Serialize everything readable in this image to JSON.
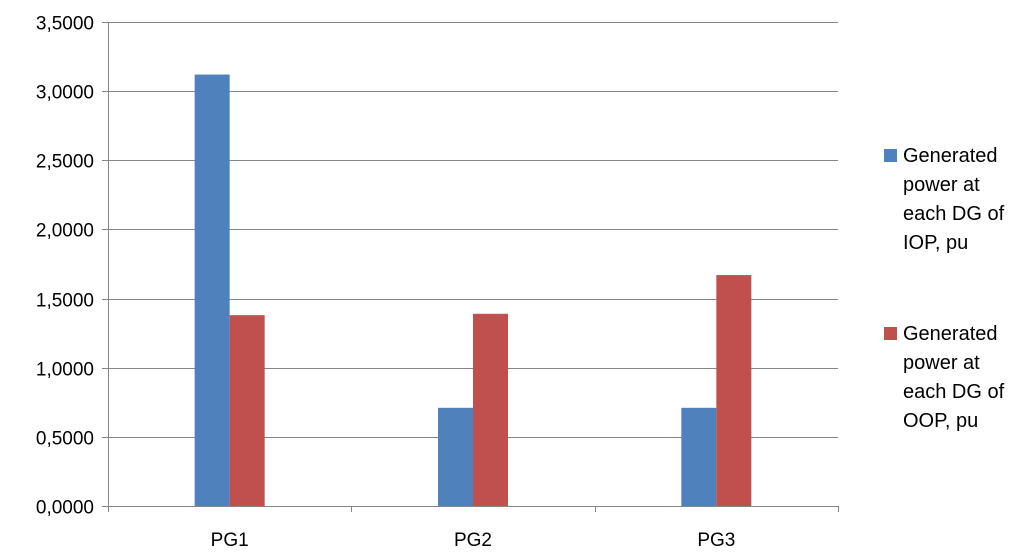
{
  "chart_data": {
    "type": "bar",
    "categories": [
      "PG1",
      "PG2",
      "PG3"
    ],
    "series": [
      {
        "name": "Generated power at each DG of IOP, pu",
        "legend_lines": [
          "Generated",
          "power at",
          "each DG of",
          "IOP, pu"
        ],
        "color": "#4F81BD",
        "values": [
          3.12,
          0.71,
          0.71
        ]
      },
      {
        "name": "Generated power at each DG of OOP, pu",
        "legend_lines": [
          "Generated",
          "power at",
          "each DG of",
          "OOP, pu"
        ],
        "color": "#C0504D",
        "values": [
          1.38,
          1.39,
          1.67
        ]
      }
    ],
    "ylim": [
      0,
      3.5
    ],
    "yticks": [
      0,
      0.5,
      1,
      1.5,
      2,
      2.5,
      3,
      3.5
    ],
    "ytick_labels": [
      "0,0000",
      "0,5000",
      "1,0000",
      "1,5000",
      "2,0000",
      "2,5000",
      "3,0000",
      "3,5000"
    ],
    "grid": true,
    "legend_position": "right",
    "title": "",
    "xlabel": "",
    "ylabel": ""
  }
}
